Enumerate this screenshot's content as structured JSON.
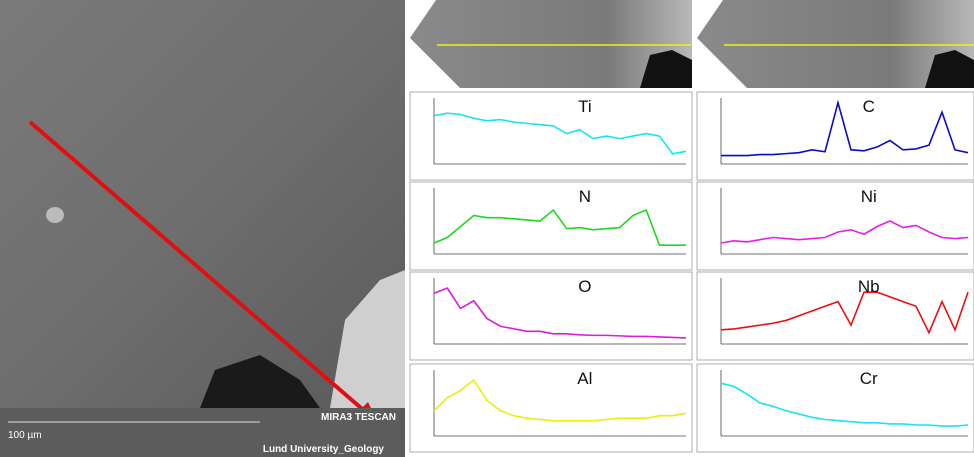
{
  "sem": {
    "scale": "100 µm",
    "instrument": "MIRA3 TESCAN",
    "lab": "Lund University_Geology"
  },
  "panels": [
    {
      "label": "Ti",
      "color": "#18e4f0",
      "ylim": [
        0,
        2600
      ],
      "values": [
        1900,
        2000,
        1950,
        1800,
        1700,
        1750,
        1650,
        1600,
        1550,
        1500,
        1200,
        1350,
        1000,
        1100,
        1000,
        1100,
        1200,
        1100,
        400,
        500
      ]
    },
    {
      "label": "C",
      "color": "#0a0acc",
      "ylim": [
        0,
        7000
      ],
      "values": [
        900,
        900,
        900,
        1000,
        1000,
        1100,
        1200,
        1500,
        1300,
        6500,
        1500,
        1400,
        1800,
        2500,
        1500,
        1600,
        2000,
        5500,
        1500,
        1200
      ]
    },
    {
      "label": "N",
      "color": "#1ed81e",
      "ylim": [
        0,
        6000
      ],
      "values": [
        1000,
        1500,
        2500,
        3500,
        3300,
        3300,
        3200,
        3100,
        3000,
        4000,
        2300,
        2400,
        2200,
        2300,
        2400,
        3500,
        4000,
        800,
        800,
        800
      ]
    },
    {
      "label": "Ni",
      "color": "#e81ee8",
      "ylim": [
        0,
        6000
      ],
      "values": [
        1000,
        1200,
        1100,
        1300,
        1500,
        1400,
        1300,
        1400,
        1500,
        2000,
        2200,
        1800,
        2500,
        3000,
        2400,
        2600,
        2000,
        1500,
        1400,
        1500
      ]
    },
    {
      "label": "O",
      "color": "#d81ed8",
      "ylim": [
        0,
        13000
      ],
      "values": [
        10000,
        11000,
        7000,
        8500,
        5000,
        3500,
        3000,
        2500,
        2500,
        2000,
        2000,
        1800,
        1700,
        1700,
        1600,
        1500,
        1500,
        1400,
        1300,
        1200
      ]
    },
    {
      "label": "Nb",
      "color": "#e81010",
      "ylim": [
        0,
        7000
      ],
      "values": [
        1500,
        1600,
        1800,
        2000,
        2200,
        2500,
        3000,
        3500,
        4000,
        4500,
        2000,
        5500,
        5500,
        5000,
        4500,
        4000,
        1200,
        4500,
        1500,
        5500
      ]
    },
    {
      "label": "Al",
      "color": "#ecec10",
      "ylim": [
        0,
        2600
      ],
      "values": [
        1000,
        1500,
        1800,
        2200,
        1400,
        1000,
        800,
        700,
        650,
        600,
        600,
        600,
        600,
        650,
        700,
        700,
        700,
        800,
        800,
        900
      ]
    },
    {
      "label": "Cr",
      "color": "#18e4f0",
      "ylim": [
        0,
        6000
      ],
      "values": [
        4800,
        4500,
        3800,
        3000,
        2700,
        2300,
        2000,
        1700,
        1500,
        1400,
        1300,
        1200,
        1200,
        1100,
        1100,
        1000,
        1000,
        900,
        900,
        1000
      ]
    }
  ]
}
